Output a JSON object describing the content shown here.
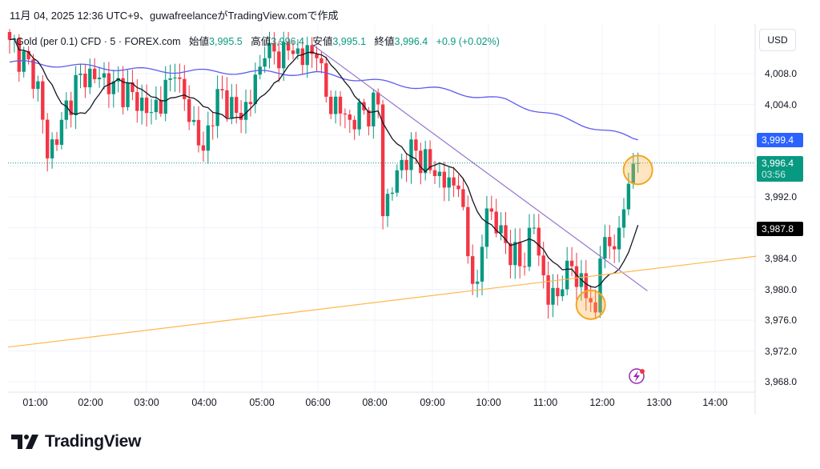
{
  "header": "11月 04, 2025 12:36 UTC+9、guwafreelanceがTradingView.comで作成",
  "legend": {
    "symbol": "Gold (per 0.1) CFD · 5 · FOREX.com",
    "open_label": "始値",
    "open": "3,995.5",
    "high_label": "高値",
    "high": "3,996.4",
    "low_label": "安値",
    "low": "3,995.1",
    "close_label": "終値",
    "close": "3,996.4",
    "change": "+0.9 (+0.02%)"
  },
  "currency": "USD",
  "price_labels": [
    {
      "text": "4,008.0",
      "p": 4008
    },
    {
      "text": "4,004.0",
      "p": 4004
    },
    {
      "text": "3,992.0",
      "p": 3992
    },
    {
      "text": "3,984.0",
      "p": 3984
    },
    {
      "text": "3,980.0",
      "p": 3980
    },
    {
      "text": "3,976.0",
      "p": 3976
    },
    {
      "text": "3,972.0",
      "p": 3972
    },
    {
      "text": "3,968.0",
      "p": 3968
    }
  ],
  "badges": {
    "ma_long": {
      "text": "3,999.4",
      "p": 3999.4,
      "color": "#2962ff"
    },
    "last": {
      "text": "3,996.4",
      "countdown": "03:56",
      "p": 3996.4,
      "color": "#089981"
    },
    "ma_short": {
      "text": "3,987.8",
      "p": 3987.8,
      "color": "#000000"
    }
  },
  "logo": "TradingView",
  "chart_data": {
    "type": "candlestick",
    "title": "Gold (per 0.1) CFD · 5 · FOREX.com",
    "x_ticks": [
      "01:00",
      "02:00",
      "03:00",
      "04:00",
      "05:00",
      "06:00",
      "08:00",
      "09:00",
      "10:00",
      "11:00",
      "12:00",
      "13:00",
      "14:00"
    ],
    "ylim": [
      3966,
      4014
    ],
    "up_color": "#089981",
    "down_color": "#f23645",
    "close_waypoints": [
      [
        0,
        4012.4
      ],
      [
        6,
        4007
      ],
      [
        8,
        3997
      ],
      [
        11,
        4002
      ],
      [
        15,
        4008
      ],
      [
        22,
        4007
      ],
      [
        30,
        4003
      ],
      [
        35,
        4007.5
      ],
      [
        41,
        3998
      ],
      [
        44,
        4006
      ],
      [
        49,
        4002
      ],
      [
        54,
        4010
      ],
      [
        59,
        4011
      ],
      [
        65,
        4010
      ],
      [
        67,
        4005
      ],
      [
        72,
        4002
      ],
      [
        78,
        4004
      ],
      [
        79,
        3989.5
      ],
      [
        83,
        3996.8
      ],
      [
        86,
        3998
      ],
      [
        90,
        3994.7
      ],
      [
        95,
        3993
      ],
      [
        97,
        3984.3
      ],
      [
        99,
        3981
      ],
      [
        101,
        3990.5
      ],
      [
        105,
        3986
      ],
      [
        108,
        3983
      ],
      [
        111,
        3988
      ],
      [
        114,
        3978
      ],
      [
        117,
        3980
      ],
      [
        119,
        3983
      ],
      [
        124,
        3977
      ],
      [
        125,
        3984
      ],
      [
        129,
        3988
      ],
      [
        131,
        3993.7
      ],
      [
        133,
        3996.4
      ]
    ],
    "ma_long_waypoints": [
      [
        0,
        4009.5
      ],
      [
        30,
        4008.4
      ],
      [
        65,
        4008
      ],
      [
        90,
        4006
      ],
      [
        105,
        4004.5
      ],
      [
        118,
        4002
      ],
      [
        133,
        3999.4
      ]
    ],
    "ma_short_period": 10,
    "trendlines": [
      {
        "name": "downtrend",
        "color": "#9575cd",
        "from": [
          64,
          4011.8
        ],
        "to": [
          135,
          3979.8
        ]
      },
      {
        "name": "support",
        "color": "#ffb74d",
        "from": [
          0,
          3972.5
        ],
        "to": [
          158,
          3984.3
        ]
      }
    ],
    "highlights": [
      {
        "i": 133,
        "p": 3995.5
      },
      {
        "i": 123,
        "p": 3978
      }
    ]
  }
}
